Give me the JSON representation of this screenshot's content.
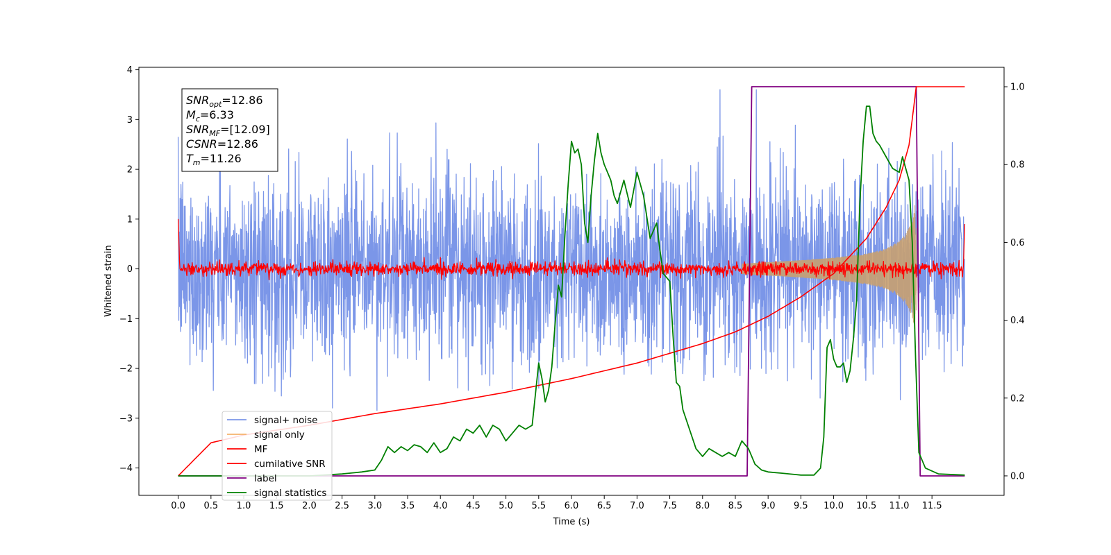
{
  "chart_data": {
    "type": "line",
    "title": "",
    "xlabel": "Time (s)",
    "ylabel": "Whitened strain",
    "y2label": "",
    "xlim": [
      -0.6,
      12.6
    ],
    "ylim": [
      -4.55,
      4.05
    ],
    "y2lim": [
      -0.05,
      1.05
    ],
    "grid": false,
    "legend_position": "lower-left",
    "xticks": [
      0.0,
      0.5,
      1.0,
      1.5,
      2.0,
      2.5,
      3.0,
      3.5,
      4.0,
      4.5,
      5.0,
      5.5,
      6.0,
      6.5,
      7.0,
      7.5,
      8.0,
      8.5,
      9.0,
      9.5,
      10.0,
      10.5,
      11.0,
      11.5
    ],
    "xtick_labels": [
      "0.0",
      "0.5",
      "1.0",
      "1.5",
      "2.0",
      "2.5",
      "3.0",
      "3.5",
      "4.0",
      "4.5",
      "5.0",
      "5.5",
      "6.0",
      "6.5",
      "7.0",
      "7.5",
      "8.0",
      "8.5",
      "9.0",
      "9.5",
      "10.0",
      "10.5",
      "11.0",
      "11.5"
    ],
    "yticks": [
      4,
      3,
      2,
      1,
      0,
      -1,
      -2,
      -3,
      -4
    ],
    "ytick_labels": [
      "4",
      "3",
      "2",
      "1",
      "0",
      "−1",
      "−2",
      "−3",
      "−4"
    ],
    "y2ticks": [
      1.0,
      0.8,
      0.6,
      0.4,
      0.2,
      0.0
    ],
    "y2tick_labels": [
      "1.0",
      "0.8",
      "0.6",
      "0.4",
      "0.2",
      "0.0"
    ],
    "x_range_signal": [
      0.0,
      12.0
    ],
    "merger_time": 11.26,
    "series": [
      {
        "name": "signal+ noise",
        "axis": "left",
        "color": "#7b96e8",
        "description_noise_std": 1.0,
        "peak_abs": 3.6
      },
      {
        "name": "signal only",
        "axis": "left",
        "color": "#f4b26b",
        "envelope_x": [
          8.6,
          9.0,
          9.5,
          10.0,
          10.5,
          10.8,
          11.0,
          11.1,
          11.2,
          11.25,
          11.27
        ],
        "envelope_amp": [
          0.1,
          0.13,
          0.17,
          0.22,
          0.3,
          0.4,
          0.55,
          0.7,
          0.95,
          1.35,
          0.0
        ]
      },
      {
        "name": "MF",
        "axis": "left",
        "color": "#ff0000",
        "description_noise_std": 0.07
      },
      {
        "name": "cumilative SNR",
        "axis": "right",
        "color": "#ff0000",
        "x": [
          0.0,
          0.5,
          1.0,
          2.0,
          3.0,
          4.0,
          5.0,
          6.0,
          7.0,
          8.0,
          8.5,
          9.0,
          9.5,
          10.0,
          10.5,
          10.8,
          11.0,
          11.15,
          11.26,
          12.0
        ],
        "y": [
          0.0,
          0.085,
          0.105,
          0.13,
          0.16,
          0.185,
          0.215,
          0.25,
          0.29,
          0.34,
          0.37,
          0.41,
          0.46,
          0.52,
          0.61,
          0.69,
          0.76,
          0.85,
          1.0,
          1.0
        ]
      },
      {
        "name": "label",
        "axis": "right",
        "color": "#800080",
        "x": [
          0.0,
          8.68,
          8.75,
          11.26,
          11.32,
          12.0
        ],
        "y": [
          0.0,
          0.0,
          1.0,
          1.0,
          0.0,
          0.0
        ]
      },
      {
        "name": "signal statistics",
        "axis": "right",
        "color": "#008000",
        "x": [
          0.0,
          1.0,
          2.0,
          2.5,
          2.8,
          3.0,
          3.1,
          3.2,
          3.3,
          3.4,
          3.5,
          3.6,
          3.7,
          3.8,
          3.9,
          4.0,
          4.1,
          4.2,
          4.3,
          4.4,
          4.5,
          4.6,
          4.7,
          4.8,
          4.9,
          5.0,
          5.1,
          5.2,
          5.3,
          5.4,
          5.5,
          5.55,
          5.6,
          5.65,
          5.7,
          5.75,
          5.8,
          5.85,
          5.9,
          5.95,
          6.0,
          6.05,
          6.1,
          6.15,
          6.2,
          6.25,
          6.3,
          6.35,
          6.4,
          6.45,
          6.5,
          6.55,
          6.6,
          6.65,
          6.7,
          6.8,
          6.9,
          7.0,
          7.1,
          7.2,
          7.3,
          7.35,
          7.4,
          7.45,
          7.5,
          7.55,
          7.6,
          7.65,
          7.7,
          7.8,
          7.9,
          8.0,
          8.1,
          8.2,
          8.3,
          8.4,
          8.5,
          8.6,
          8.7,
          8.8,
          8.9,
          9.0,
          9.2,
          9.5,
          9.7,
          9.8,
          9.85,
          9.9,
          9.95,
          10.0,
          10.05,
          10.1,
          10.15,
          10.2,
          10.25,
          10.3,
          10.35,
          10.4,
          10.45,
          10.5,
          10.55,
          10.6,
          10.65,
          10.7,
          10.8,
          10.9,
          11.0,
          11.05,
          11.1,
          11.15,
          11.2,
          11.25,
          11.3,
          11.4,
          11.6,
          12.0
        ],
        "y": [
          0.0,
          0.0,
          0.0,
          0.005,
          0.01,
          0.015,
          0.04,
          0.075,
          0.06,
          0.075,
          0.065,
          0.08,
          0.075,
          0.06,
          0.085,
          0.06,
          0.07,
          0.1,
          0.09,
          0.12,
          0.11,
          0.13,
          0.1,
          0.13,
          0.12,
          0.09,
          0.11,
          0.13,
          0.12,
          0.13,
          0.29,
          0.25,
          0.19,
          0.22,
          0.28,
          0.39,
          0.49,
          0.46,
          0.62,
          0.75,
          0.86,
          0.83,
          0.84,
          0.8,
          0.65,
          0.6,
          0.72,
          0.81,
          0.88,
          0.83,
          0.8,
          0.78,
          0.76,
          0.72,
          0.7,
          0.76,
          0.69,
          0.78,
          0.72,
          0.61,
          0.65,
          0.58,
          0.52,
          0.51,
          0.5,
          0.36,
          0.24,
          0.23,
          0.17,
          0.12,
          0.07,
          0.05,
          0.07,
          0.06,
          0.05,
          0.06,
          0.05,
          0.09,
          0.07,
          0.03,
          0.015,
          0.01,
          0.007,
          0.002,
          0.002,
          0.02,
          0.1,
          0.33,
          0.35,
          0.3,
          0.28,
          0.28,
          0.29,
          0.24,
          0.27,
          0.35,
          0.45,
          0.7,
          0.86,
          0.95,
          0.95,
          0.88,
          0.86,
          0.85,
          0.82,
          0.79,
          0.78,
          0.82,
          0.79,
          0.76,
          0.6,
          0.3,
          0.06,
          0.02,
          0.005,
          0.002
        ]
      }
    ],
    "annotation": {
      "lines": [
        {
          "sym": "SNR",
          "sub": "opt",
          "value": "=12.86"
        },
        {
          "sym": "M",
          "sub": "c",
          "value": "=6.33"
        },
        {
          "sym": "SNR",
          "sub": "MF",
          "value": "=[12.09]"
        },
        {
          "sym": "CSNR",
          "sub": "",
          "value": "=12.86"
        },
        {
          "sym": "T",
          "sub": "m",
          "value": "=11.26"
        }
      ]
    }
  }
}
